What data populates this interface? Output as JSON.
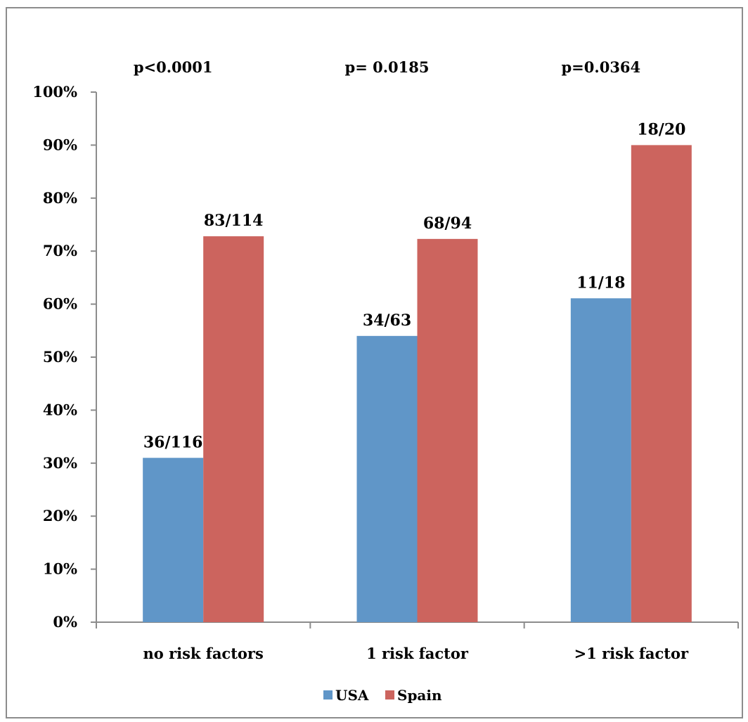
{
  "chart_data": {
    "type": "bar",
    "categories": [
      "no risk factors",
      "1 risk factor",
      ">1 risk factor"
    ],
    "series": [
      {
        "name": "USA",
        "color": "#6096c8",
        "values": [
          31.0,
          54.0,
          61.1
        ],
        "labels": [
          "36/116",
          "34/63",
          "11/18"
        ]
      },
      {
        "name": "Spain",
        "color": "#cc645e",
        "values": [
          72.8,
          72.3,
          90.0
        ],
        "labels": [
          "83/114",
          "68/94",
          "18/20"
        ]
      }
    ],
    "p_values": [
      "p<0.0001",
      "p= 0.0185",
      "p=0.0364"
    ],
    "y_ticks": [
      "0%",
      "10%",
      "20%",
      "30%",
      "40%",
      "50%",
      "60%",
      "70%",
      "80%",
      "90%",
      "100%"
    ],
    "ylim": [
      0,
      100
    ],
    "grid": false,
    "legend_position": "bottom",
    "axis_color": "#8c8c8c"
  }
}
